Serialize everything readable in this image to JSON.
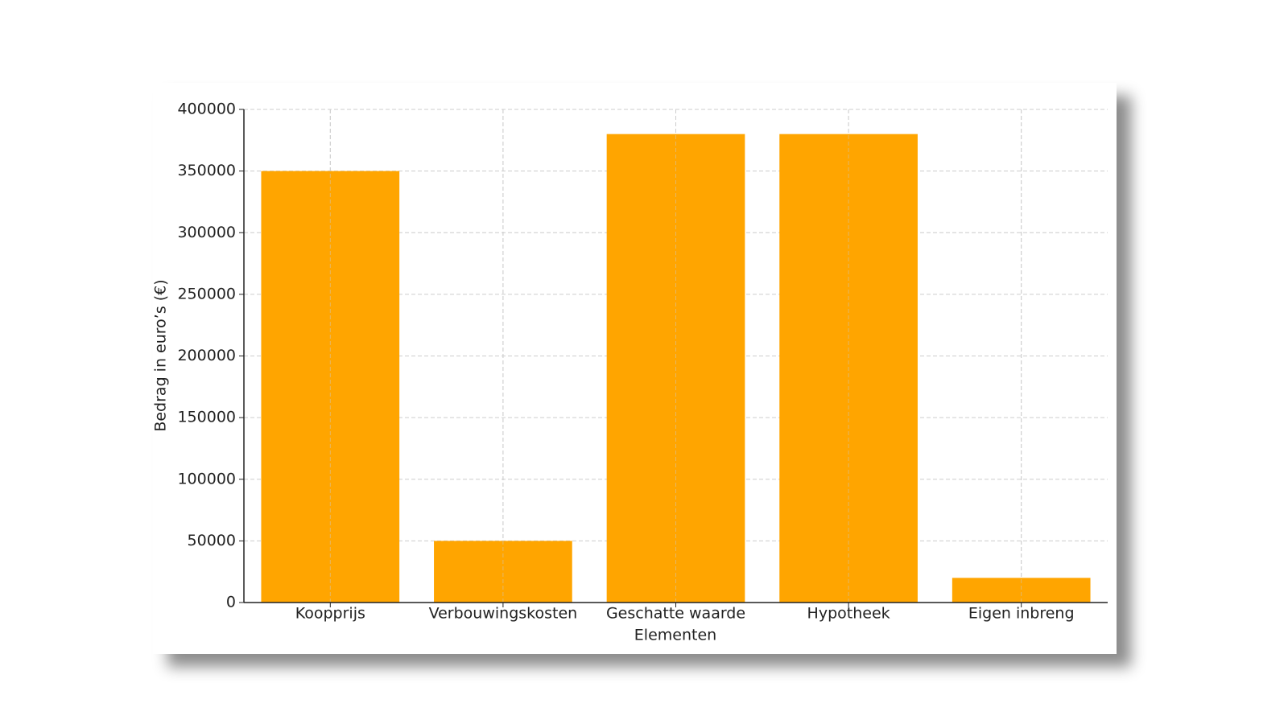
{
  "chart_data": {
    "type": "bar",
    "x_label": "Elementen",
    "y_label": "Bedrag in euro’s (€)",
    "categories": [
      "Koopprijs",
      "Verbouwingskosten",
      "Geschatte waarde",
      "Hypotheek",
      "Eigen inbreng"
    ],
    "values": [
      350000,
      50000,
      380000,
      380000,
      20000
    ],
    "color": "#ffa500",
    "ylim": [
      0,
      400000
    ],
    "yticks": [
      0,
      50000,
      100000,
      150000,
      200000,
      250000,
      300000,
      350000,
      400000
    ],
    "grid": true
  }
}
